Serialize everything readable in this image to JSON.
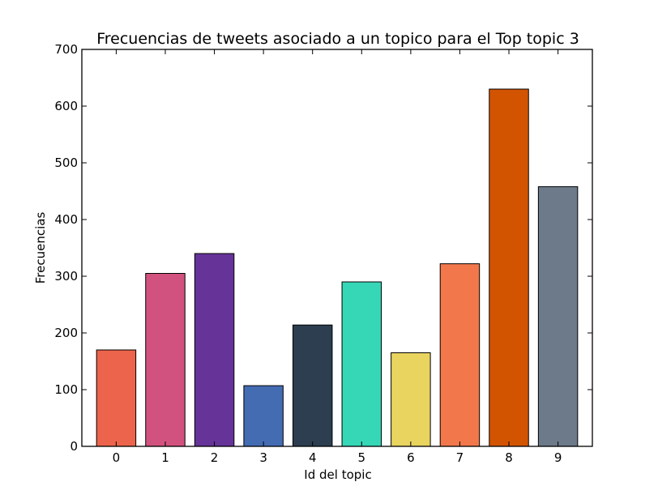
{
  "chart_data": {
    "type": "bar",
    "title": "Frecuencias de tweets asociado a un topico para el Top topic 3",
    "xlabel": "Id del topic",
    "ylabel": "Frecuencias",
    "categories": [
      "0",
      "1",
      "2",
      "3",
      "4",
      "5",
      "6",
      "7",
      "8",
      "9"
    ],
    "values": [
      170,
      305,
      340,
      107,
      214,
      290,
      165,
      322,
      630,
      458
    ],
    "colors": [
      "#ec644b",
      "#d2527f",
      "#663399",
      "#446cb3",
      "#2c3e50",
      "#36d7b7",
      "#e9d460",
      "#f2784b",
      "#d35400",
      "#6c7a89"
    ],
    "ylim": [
      0,
      700
    ],
    "yticks": [
      0,
      100,
      200,
      300,
      400,
      500,
      600,
      700
    ],
    "grid": false,
    "legend": "none"
  }
}
